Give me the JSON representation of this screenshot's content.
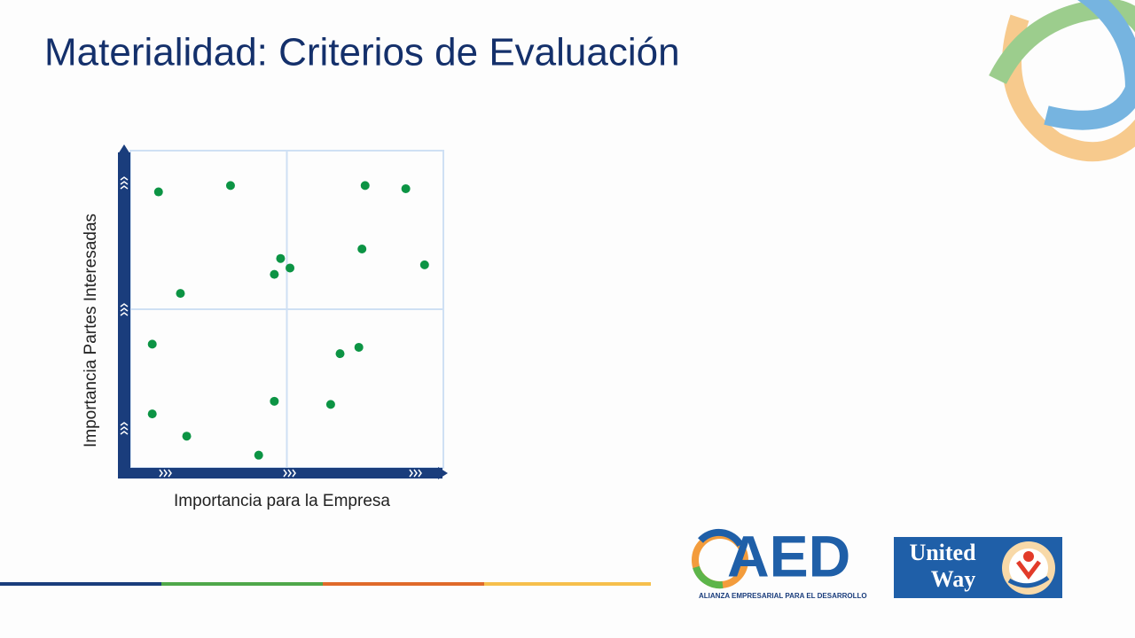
{
  "chart_data": {
    "type": "scatter",
    "title": "Materialidad: Criterios de Evaluación",
    "x_label": "Importancia para la Empresa",
    "y_label": "Importancia Partes Interesadas",
    "color": "#0c9444",
    "xlim": [
      0,
      10
    ],
    "ylim": [
      0,
      10
    ],
    "series": [
      {
        "x": [
          0.9,
          3.2,
          7.5,
          8.8,
          7.4,
          9.4,
          4.8,
          5.1,
          4.6,
          1.6,
          0.7,
          6.7,
          7.3,
          4.6,
          6.4,
          0.7,
          1.8,
          4.1
        ],
        "values": [
          8.7,
          8.9,
          8.9,
          8.8,
          6.9,
          6.4,
          6.6,
          6.3,
          6.1,
          5.5,
          3.9,
          3.6,
          3.8,
          2.1,
          2.0,
          1.7,
          1.0,
          0.4
        ]
      }
    ]
  },
  "logos": {
    "aed": "AED",
    "aed_subtitle": "ALIANZA EMPRESARIAL PARA EL DESARROLLO",
    "united_way": [
      "United",
      "Way"
    ]
  }
}
